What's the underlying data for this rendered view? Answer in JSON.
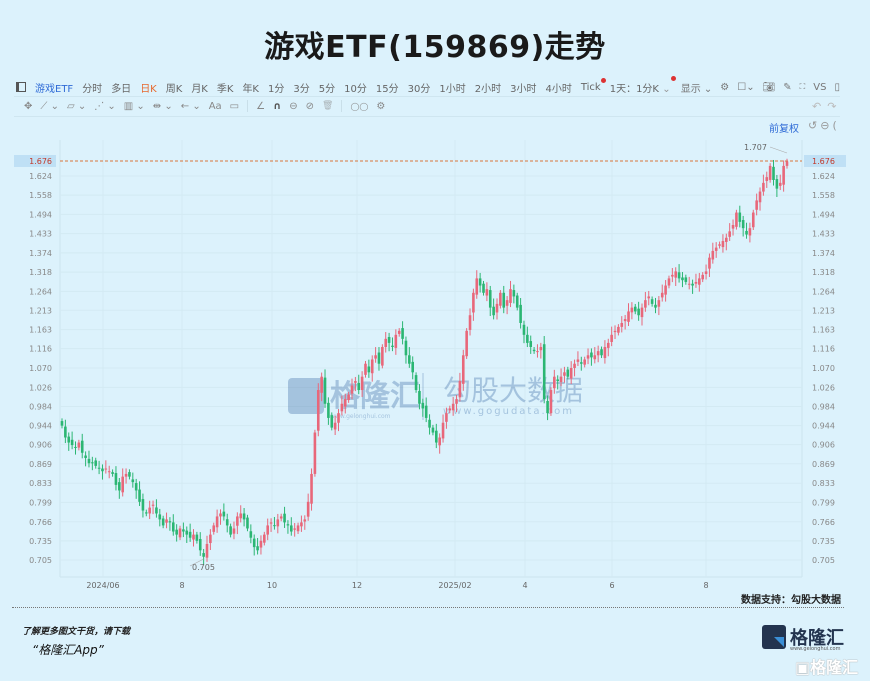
{
  "title": "游戏ETF(159869)走势",
  "toolbar": {
    "sidebar_toggle_icon": "panel-icon",
    "symbol": "游戏ETF",
    "periods": [
      "分时",
      "多日",
      "日K",
      "周K",
      "月K",
      "季K",
      "年K",
      "1分",
      "3分",
      "5分",
      "10分",
      "15分",
      "30分",
      "1小时",
      "2小时",
      "3小时",
      "4小时",
      "Tick",
      "1天：1分K"
    ],
    "active_period": "日K",
    "display_label": "显示",
    "right_icons": [
      "gear-icon",
      "square-icon",
      "camera-icon",
      "pencil-icon",
      "fullscreen-icon",
      "VS",
      "panel-icon"
    ]
  },
  "drawing_toolbar": {
    "items": [
      "✥",
      "⟋",
      "▱",
      "⋰",
      "▥",
      "⇹",
      "←",
      "Aa",
      "▭",
      "∠",
      "∩",
      "⊖",
      "⊘",
      "🗑",
      "◯◯",
      "⚙"
    ]
  },
  "adjust": {
    "label": "前复权"
  },
  "chart_data": {
    "type": "candlestick",
    "title": "游戏ETF(159869)走势",
    "y_scale": "log",
    "y_ticks": [
      1.676,
      1.624,
      1.558,
      1.494,
      1.433,
      1.374,
      1.318,
      1.264,
      1.213,
      1.163,
      1.116,
      1.07,
      1.026,
      0.984,
      0.944,
      0.906,
      0.869,
      0.833,
      0.799,
      0.766,
      0.735,
      0.705
    ],
    "x_ticks": [
      "2024/06",
      "8",
      "10",
      "12",
      "2025/02",
      "4",
      "6",
      "8"
    ],
    "current_price": 1.676,
    "annotations": [
      {
        "label": "1.707",
        "type": "max"
      },
      {
        "label": "0.705",
        "type": "min"
      }
    ],
    "up_color": "#e8677a",
    "down_color": "#2bb673",
    "closes": [
      0.944,
      0.92,
      0.91,
      0.905,
      0.9,
      0.91,
      0.89,
      0.88,
      0.87,
      0.87,
      0.865,
      0.86,
      0.855,
      0.86,
      0.855,
      0.85,
      0.83,
      0.82,
      0.845,
      0.85,
      0.845,
      0.835,
      0.82,
      0.8,
      0.785,
      0.78,
      0.79,
      0.795,
      0.78,
      0.77,
      0.76,
      0.77,
      0.765,
      0.75,
      0.745,
      0.755,
      0.75,
      0.745,
      0.74,
      0.745,
      0.735,
      0.72,
      0.71,
      0.73,
      0.745,
      0.76,
      0.775,
      0.78,
      0.775,
      0.76,
      0.745,
      0.755,
      0.775,
      0.78,
      0.77,
      0.755,
      0.74,
      0.725,
      0.72,
      0.735,
      0.745,
      0.76,
      0.765,
      0.76,
      0.77,
      0.775,
      0.765,
      0.76,
      0.75,
      0.755,
      0.76,
      0.765,
      0.77,
      0.8,
      0.85,
      0.93,
      1.02,
      1.05,
      0.99,
      0.96,
      0.94,
      0.95,
      0.97,
      0.99,
      1.0,
      1.01,
      1.03,
      1.04,
      1.02,
      1.05,
      1.08,
      1.06,
      1.09,
      1.1,
      1.08,
      1.12,
      1.14,
      1.13,
      1.12,
      1.15,
      1.16,
      1.14,
      1.1,
      1.08,
      1.06,
      1.02,
      0.99,
      0.98,
      0.96,
      0.94,
      0.93,
      0.91,
      0.92,
      0.95,
      0.97,
      0.98,
      0.99,
      1.0,
      1.04,
      1.1,
      1.16,
      1.2,
      1.26,
      1.3,
      1.28,
      1.26,
      1.27,
      1.22,
      1.2,
      1.23,
      1.26,
      1.22,
      1.24,
      1.27,
      1.25,
      1.22,
      1.18,
      1.15,
      1.13,
      1.12,
      1.11,
      1.11,
      1.12,
      1.0,
      0.97,
      1.02,
      1.05,
      1.04,
      1.05,
      1.06,
      1.05,
      1.07,
      1.08,
      1.09,
      1.08,
      1.09,
      1.1,
      1.095,
      1.1,
      1.11,
      1.1,
      1.12,
      1.13,
      1.15,
      1.16,
      1.17,
      1.18,
      1.19,
      1.21,
      1.22,
      1.21,
      1.2,
      1.22,
      1.24,
      1.25,
      1.23,
      1.22,
      1.24,
      1.26,
      1.28,
      1.3,
      1.31,
      1.32,
      1.3,
      1.295,
      1.29,
      1.285,
      1.28,
      1.29,
      1.3,
      1.31,
      1.32,
      1.36,
      1.38,
      1.39,
      1.4,
      1.41,
      1.42,
      1.44,
      1.46,
      1.5,
      1.47,
      1.45,
      1.43,
      1.45,
      1.5,
      1.54,
      1.57,
      1.6,
      1.62,
      1.66,
      1.61,
      1.58,
      1.6,
      1.66,
      1.676
    ]
  },
  "data_source": "数据支持：勾股大数据",
  "watermark": {
    "brand1": "格隆汇",
    "brand1_url": "www.gelonghui.com",
    "brand2": "勾股大数据",
    "brand2_url": "www.gogudata.com"
  },
  "promo": {
    "line1": "了解更多图文干货，请下载",
    "line2": "“格隆汇App”"
  },
  "logo": {
    "name": "格隆汇",
    "url": "www.gelonghui.com"
  }
}
